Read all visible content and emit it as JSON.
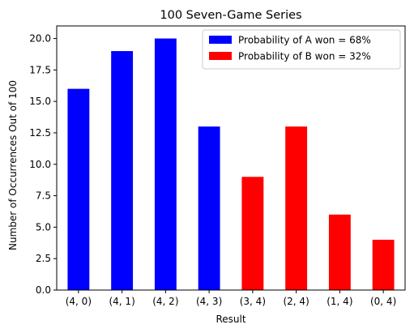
{
  "chart_data": {
    "type": "bar",
    "title": "100 Seven-Game Series",
    "xlabel": "Result",
    "ylabel": "Number of Occurrences Out of 100",
    "categories": [
      "(4, 0)",
      "(4, 1)",
      "(4, 2)",
      "(4, 3)",
      "(3, 4)",
      "(2, 4)",
      "(1, 4)",
      "(0, 4)"
    ],
    "values": [
      16,
      19,
      20,
      13,
      9,
      13,
      6,
      4
    ],
    "bar_colors": [
      "#0000ff",
      "#0000ff",
      "#0000ff",
      "#0000ff",
      "#ff0000",
      "#ff0000",
      "#ff0000",
      "#ff0000"
    ],
    "ylim": [
      0,
      21
    ],
    "yticks": [
      0.0,
      2.5,
      5.0,
      7.5,
      10.0,
      12.5,
      15.0,
      17.5,
      20.0
    ],
    "ytick_labels": [
      "0.0",
      "2.5",
      "5.0",
      "7.5",
      "10.0",
      "12.5",
      "15.0",
      "17.5",
      "20.0"
    ],
    "grid": false,
    "legend_position": "top-right",
    "legend": [
      {
        "label": "Probability of A won = 68%",
        "color": "#0000ff"
      },
      {
        "label": "Probability of B won = 32%",
        "color": "#ff0000"
      }
    ]
  }
}
